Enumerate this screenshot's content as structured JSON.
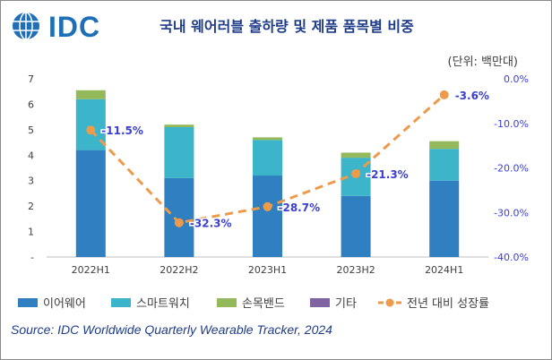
{
  "header": {
    "logo_text": "IDC",
    "title": "국내 웨어러블 출하량 및 제품 품목별 비중",
    "unit": "(단위: 백만대)"
  },
  "footer": {
    "source": "Source: IDC Worldwide Quarterly Wearable Tracker, 2024"
  },
  "colors": {
    "earwear": "#2f7fc1",
    "smartwatch": "#3cb4c9",
    "band": "#94b95a",
    "other": "#8064a2",
    "growth": "#ed9b4a",
    "growth_label": "#3a3fd1",
    "logo": "#1f6fb7"
  },
  "chart_data": {
    "type": "bar",
    "stacked": true,
    "title": "국내 웨어러블 출하량 및 제품 품목별 비중",
    "categories": [
      "2022H1",
      "2022H2",
      "2023H1",
      "2023H2",
      "2024H1"
    ],
    "series": [
      {
        "name": "이어웨어",
        "values": [
          4.2,
          3.1,
          3.2,
          2.4,
          3.0
        ],
        "color_key": "earwear"
      },
      {
        "name": "스마트워치",
        "values": [
          2.0,
          2.0,
          1.4,
          1.5,
          1.25
        ],
        "color_key": "smartwatch"
      },
      {
        "name": "손목밴드",
        "values": [
          0.35,
          0.1,
          0.1,
          0.2,
          0.3
        ],
        "color_key": "band"
      },
      {
        "name": "기타",
        "values": [
          0.0,
          0.0,
          0.0,
          0.0,
          0.0
        ],
        "color_key": "other"
      }
    ],
    "line_series": {
      "name": "전년 대비 성장률",
      "values": [
        -11.5,
        -32.3,
        -28.7,
        -21.3,
        -3.6
      ],
      "labels": [
        "-11.5%",
        "-32.3%",
        "-28.7%",
        "-21.3%",
        "-3.6%"
      ],
      "axis": "right"
    },
    "ylim": [
      0,
      7
    ],
    "yticks": [
      0,
      1,
      2,
      3,
      4,
      5,
      6,
      7
    ],
    "ytick_labels": [
      "-",
      "1",
      "2",
      "3",
      "4",
      "5",
      "6",
      "7"
    ],
    "y2lim": [
      -40,
      0
    ],
    "y2ticks": [
      0,
      -10,
      -20,
      -30,
      -40
    ],
    "y2tick_labels": [
      "0.0%",
      "-10.0%",
      "-20.0%",
      "-30.0%",
      "-40.0%"
    ],
    "ylabel": "",
    "xlabel": "",
    "legend": [
      "이어웨어",
      "스마트워치",
      "손목밴드",
      "기타",
      "전년 대비 성장률"
    ],
    "legend_position": "bottom"
  }
}
